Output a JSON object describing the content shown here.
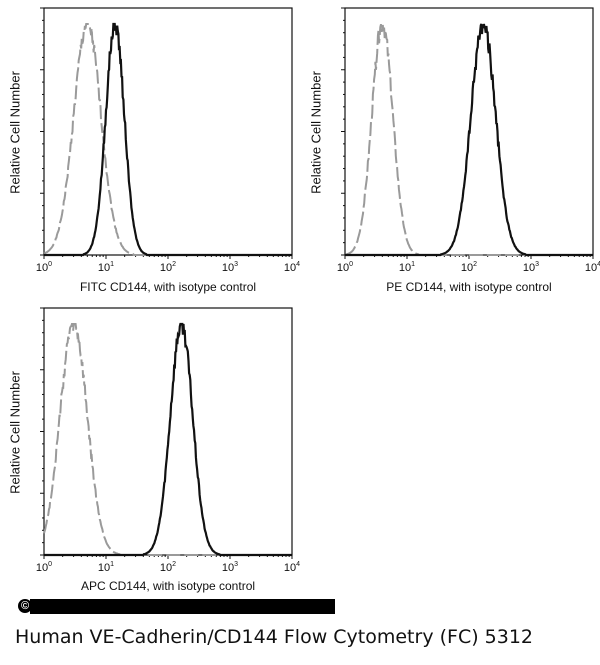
{
  "chart_data": [
    {
      "type": "line",
      "subtype": "flow-cytometry-histogram",
      "xlabel": "FITC CD144, with isotype control",
      "ylabel": "Relative Cell Number",
      "xscale": "log",
      "xlim": [
        1,
        10000
      ],
      "xticks": [
        "10^0",
        "10^1",
        "10^2",
        "10^3",
        "10^4"
      ],
      "series": [
        {
          "name": "isotype control",
          "style": "dashed",
          "color": "#9a9a9a",
          "peak": 5,
          "spread_decades": 0.22
        },
        {
          "name": "CD144",
          "style": "solid",
          "color": "#111111",
          "peak": 14,
          "spread_decades": 0.15
        }
      ]
    },
    {
      "type": "line",
      "subtype": "flow-cytometry-histogram",
      "xlabel": "PE CD144, with isotype control",
      "ylabel": "Relative Cell Number",
      "xscale": "log",
      "xlim": [
        1,
        10000
      ],
      "xticks": [
        "10^0",
        "10^1",
        "10^2",
        "10^3",
        "10^4"
      ],
      "series": [
        {
          "name": "isotype control",
          "style": "dashed",
          "color": "#9a9a9a",
          "peak": 4,
          "spread_decades": 0.17
        },
        {
          "name": "CD144",
          "style": "solid",
          "color": "#111111",
          "peak": 170,
          "spread_decades": 0.2
        }
      ]
    },
    {
      "type": "line",
      "subtype": "flow-cytometry-histogram",
      "xlabel": "APC CD144, with isotype control",
      "ylabel": "Relative Cell Number",
      "xscale": "log",
      "xlim": [
        1,
        10000
      ],
      "xticks": [
        "10^0",
        "10^1",
        "10^2",
        "10^3",
        "10^4"
      ],
      "series": [
        {
          "name": "isotype control",
          "style": "dashed",
          "color": "#9a9a9a",
          "peak": 3,
          "spread_decades": 0.22
        },
        {
          "name": "CD144",
          "style": "solid",
          "color": "#111111",
          "peak": 165,
          "spread_decades": 0.18
        }
      ]
    }
  ],
  "copyright": {
    "symbol": "©"
  },
  "caption": "Human VE-Cadherin/CD144 Flow Cytometry (FC) 5312"
}
